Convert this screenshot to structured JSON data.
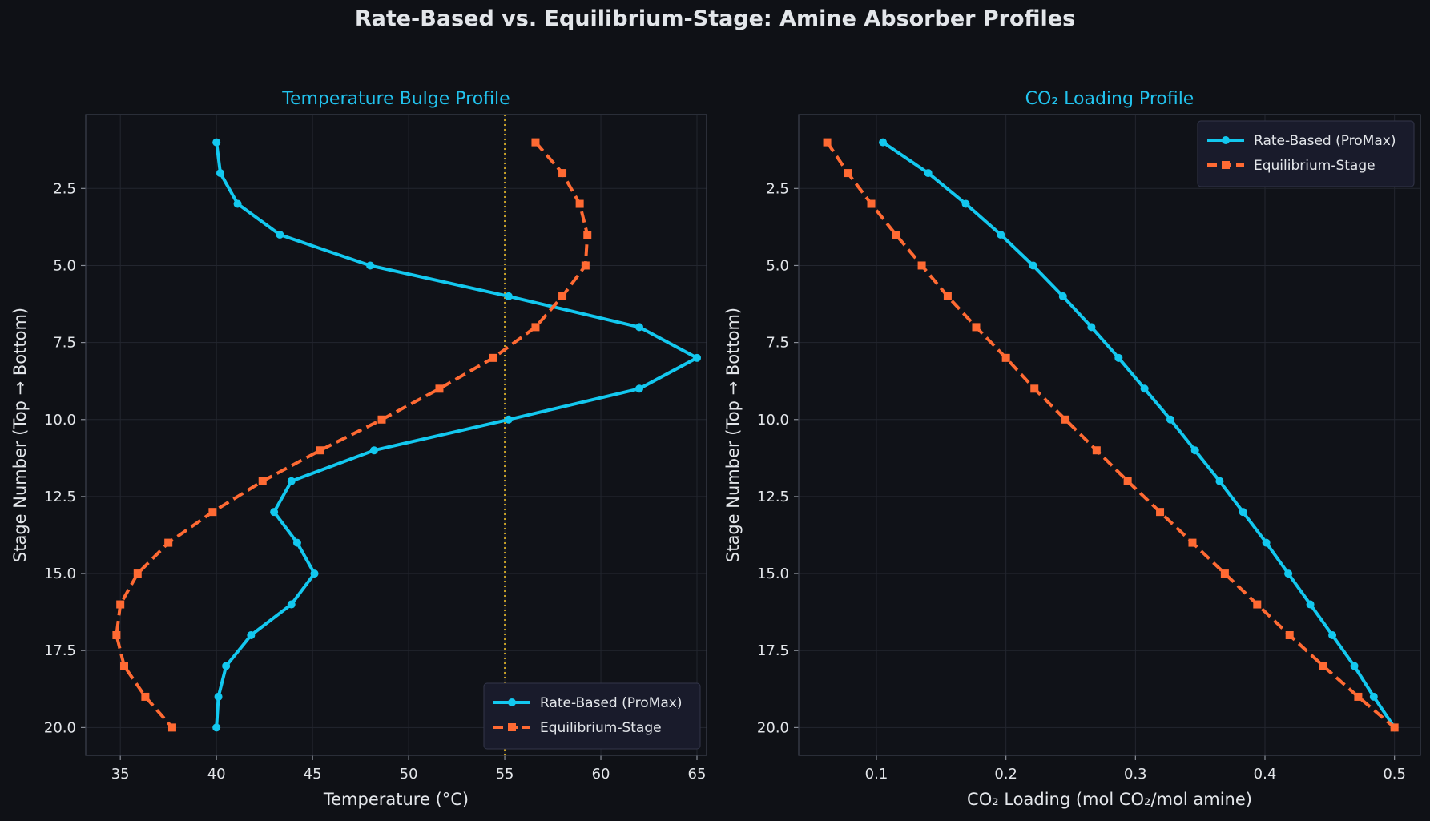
{
  "title": "Rate-Based vs. Equilibrium-Stage: Amine Absorber Profiles",
  "colors": {
    "background": "#0f1116",
    "axes_bg": "#101218",
    "rate_based": "#13c8ef",
    "equilibrium": "#ff6a33",
    "reference_line": "#c9a227",
    "text": "#e3e6ea",
    "panel_title": "#22c3ee"
  },
  "chart_data": [
    {
      "type": "line",
      "title": "Temperature Bulge Profile",
      "xlabel": "Temperature (°C)",
      "ylabel": "Stage Number (Top → Bottom)",
      "xlim": [
        33.2,
        65.5
      ],
      "ylim": [
        20.9,
        0.1
      ],
      "y_inverted": true,
      "xticks": [
        "35",
        "40",
        "45",
        "50",
        "55",
        "60",
        "65"
      ],
      "yticks": [
        "2.5",
        "5.0",
        "7.5",
        "10.0",
        "12.5",
        "15.0",
        "17.5",
        "20.0"
      ],
      "grid": true,
      "legend": "lower right",
      "reference_line": {
        "x": 55,
        "style": "dotted"
      },
      "series": [
        {
          "name": "Rate-Based (ProMax)",
          "style": "solid-circle",
          "x": [
            40.0,
            40.2,
            41.1,
            43.3,
            48.0,
            55.2,
            62.0,
            65.0,
            62.0,
            55.2,
            48.2,
            43.9,
            43.0,
            44.2,
            45.1,
            43.9,
            41.8,
            40.5,
            40.1,
            40.0
          ],
          "y": [
            1,
            2,
            3,
            4,
            5,
            6,
            7,
            8,
            9,
            10,
            11,
            12,
            13,
            14,
            15,
            16,
            17,
            18,
            19,
            20
          ]
        },
        {
          "name": "Equilibrium-Stage",
          "style": "dashed-square",
          "x": [
            56.6,
            58.0,
            58.9,
            59.3,
            59.2,
            58.0,
            56.6,
            54.4,
            51.6,
            48.6,
            45.4,
            42.4,
            39.8,
            37.5,
            35.9,
            35.0,
            34.8,
            35.2,
            36.3,
            37.7
          ],
          "y": [
            1,
            2,
            3,
            4,
            5,
            6,
            7,
            8,
            9,
            10,
            11,
            12,
            13,
            14,
            15,
            16,
            17,
            18,
            19,
            20
          ]
        }
      ]
    },
    {
      "type": "line",
      "title": "CO₂ Loading Profile",
      "xlabel": "CO₂ Loading (mol CO₂/mol amine)",
      "ylabel": "Stage Number (Top → Bottom)",
      "xlim": [
        0.04,
        0.52
      ],
      "ylim": [
        20.9,
        0.1
      ],
      "y_inverted": true,
      "xticks": [
        "0.1",
        "0.2",
        "0.3",
        "0.4",
        "0.5"
      ],
      "yticks": [
        "2.5",
        "5.0",
        "7.5",
        "10.0",
        "12.5",
        "15.0",
        "17.5",
        "20.0"
      ],
      "grid": true,
      "legend": "upper right",
      "series": [
        {
          "name": "Rate-Based (ProMax)",
          "style": "solid-circle",
          "x": [
            0.105,
            0.14,
            0.169,
            0.196,
            0.221,
            0.244,
            0.266,
            0.287,
            0.307,
            0.327,
            0.346,
            0.365,
            0.383,
            0.401,
            0.418,
            0.435,
            0.452,
            0.469,
            0.484,
            0.5
          ],
          "y": [
            1,
            2,
            3,
            4,
            5,
            6,
            7,
            8,
            9,
            10,
            11,
            12,
            13,
            14,
            15,
            16,
            17,
            18,
            19,
            20
          ]
        },
        {
          "name": "Equilibrium-Stage",
          "style": "dashed-square",
          "x": [
            0.062,
            0.078,
            0.096,
            0.115,
            0.135,
            0.155,
            0.177,
            0.2,
            0.222,
            0.246,
            0.27,
            0.294,
            0.319,
            0.344,
            0.369,
            0.394,
            0.419,
            0.445,
            0.472,
            0.5
          ],
          "y": [
            1,
            2,
            3,
            4,
            5,
            6,
            7,
            8,
            9,
            10,
            11,
            12,
            13,
            14,
            15,
            16,
            17,
            18,
            19,
            20
          ]
        }
      ]
    }
  ]
}
